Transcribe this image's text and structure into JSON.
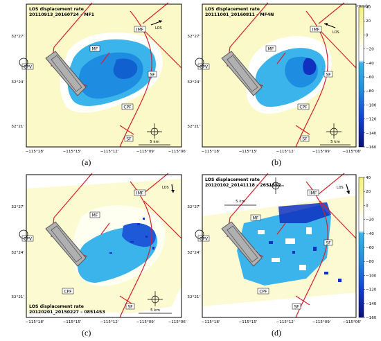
{
  "panels": [
    {
      "letter": "(a)",
      "title": "LOS displacement rate",
      "subtitle": "20110913_20160724 – MF1",
      "title_position": "top",
      "los_label": "LOS",
      "scale_label": "5 km",
      "scale_position": "bottom-right",
      "show_colorbar": false
    },
    {
      "letter": "(b)",
      "title": "LOS displacement rate",
      "subtitle": "20111001_20160811 – MF4N",
      "title_position": "top",
      "los_label": "LOS",
      "scale_label": "5 km",
      "scale_position": "bottom-right",
      "show_colorbar": true
    },
    {
      "letter": "(c)",
      "title": "LOS displacement rate",
      "subtitle": "20120201_20150227 – 08514S3",
      "title_position": "bottom",
      "los_label": "LOS",
      "scale_label": "5 km",
      "scale_position": "bottom-right",
      "show_colorbar": false
    },
    {
      "letter": "(d)",
      "title": "LOS displacement rate",
      "subtitle": "20120102_20141118 – 26515S2",
      "title_position": "top",
      "los_label": "LOS",
      "scale_label": "5 km",
      "scale_position": "top-left",
      "show_colorbar": true
    }
  ],
  "axes": {
    "x_ticks": [
      "−115°18'",
      "−115°15'",
      "−115°12'",
      "−115°09'",
      "−115°06'"
    ],
    "y_ticks": [
      "32°27'",
      "32°24'",
      "32°21'"
    ]
  },
  "labels": {
    "imf": "IMF",
    "mf": "MF",
    "cpv": "CPV",
    "sf": "SF",
    "cpf": "CPF"
  },
  "colorbar": {
    "unit": "mm/yr",
    "ticks": [
      "40",
      "20",
      "0",
      "−20",
      "−40",
      "−60",
      "−80",
      "−100",
      "−120",
      "−140",
      "−160"
    ]
  },
  "colors": {
    "background_fill": "#fbf9c8",
    "noise_white": "#ffffff",
    "deformation_light": "#3ab4ea",
    "deformation_mid": "#1e8ce0",
    "deformation_dark": "#1030c0",
    "fault_red": "#d8202a",
    "plant_gray": "#b0b0b0"
  }
}
